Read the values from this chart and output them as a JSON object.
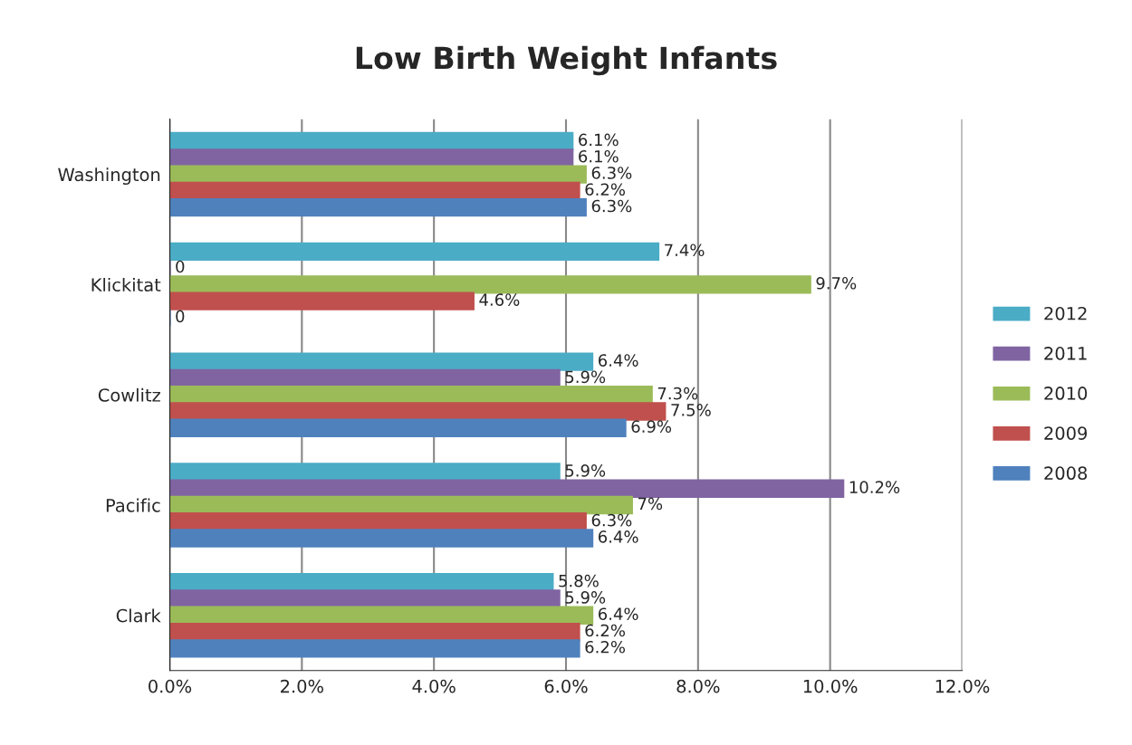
{
  "chart_data": {
    "type": "bar",
    "orientation": "horizontal",
    "title": "Low Birth Weight Infants",
    "categories": [
      "Washington",
      "Klickitat",
      "Cowlitz",
      "Pacific",
      "Clark"
    ],
    "series": [
      {
        "name": "2012",
        "color": "#4bacc6",
        "values": [
          6.1,
          7.4,
          6.4,
          5.9,
          5.8
        ],
        "value_labels": [
          "6.1%",
          "7.4%",
          "6.4%",
          "5.9%",
          "5.8%"
        ]
      },
      {
        "name": "2011",
        "color": "#8064a2",
        "values": [
          6.1,
          0,
          5.9,
          10.2,
          5.9
        ],
        "value_labels": [
          "6.1%",
          "0",
          "5.9%",
          "10.2%",
          "5.9%"
        ]
      },
      {
        "name": "2010",
        "color": "#9bbb59",
        "values": [
          6.3,
          9.7,
          7.3,
          7,
          6.4
        ],
        "value_labels": [
          "6.3%",
          "9.7%",
          "7.3%",
          "7%",
          "6.4%"
        ]
      },
      {
        "name": "2009",
        "color": "#c0504d",
        "values": [
          6.2,
          4.6,
          7.5,
          6.3,
          6.2
        ],
        "value_labels": [
          "6.2%",
          "4.6%",
          "7.5%",
          "6.3%",
          "6.2%"
        ]
      },
      {
        "name": "2008",
        "color": "#4f81bd",
        "values": [
          6.3,
          0,
          6.9,
          6.4,
          6.2
        ],
        "value_labels": [
          "6.3%",
          "0",
          "6.9%",
          "6.4%",
          "6.2%"
        ]
      }
    ],
    "xlim": [
      0,
      12
    ],
    "xticks": [
      {
        "value": 0,
        "label": "0.0%"
      },
      {
        "value": 2,
        "label": "2.0%"
      },
      {
        "value": 4,
        "label": "4.0%"
      },
      {
        "value": 6,
        "label": "6.0%"
      },
      {
        "value": 8,
        "label": "8.0%"
      },
      {
        "value": 10,
        "label": "10.0%"
      },
      {
        "value": 12,
        "label": "12.0%"
      }
    ],
    "grid": "x",
    "legend": "right"
  }
}
